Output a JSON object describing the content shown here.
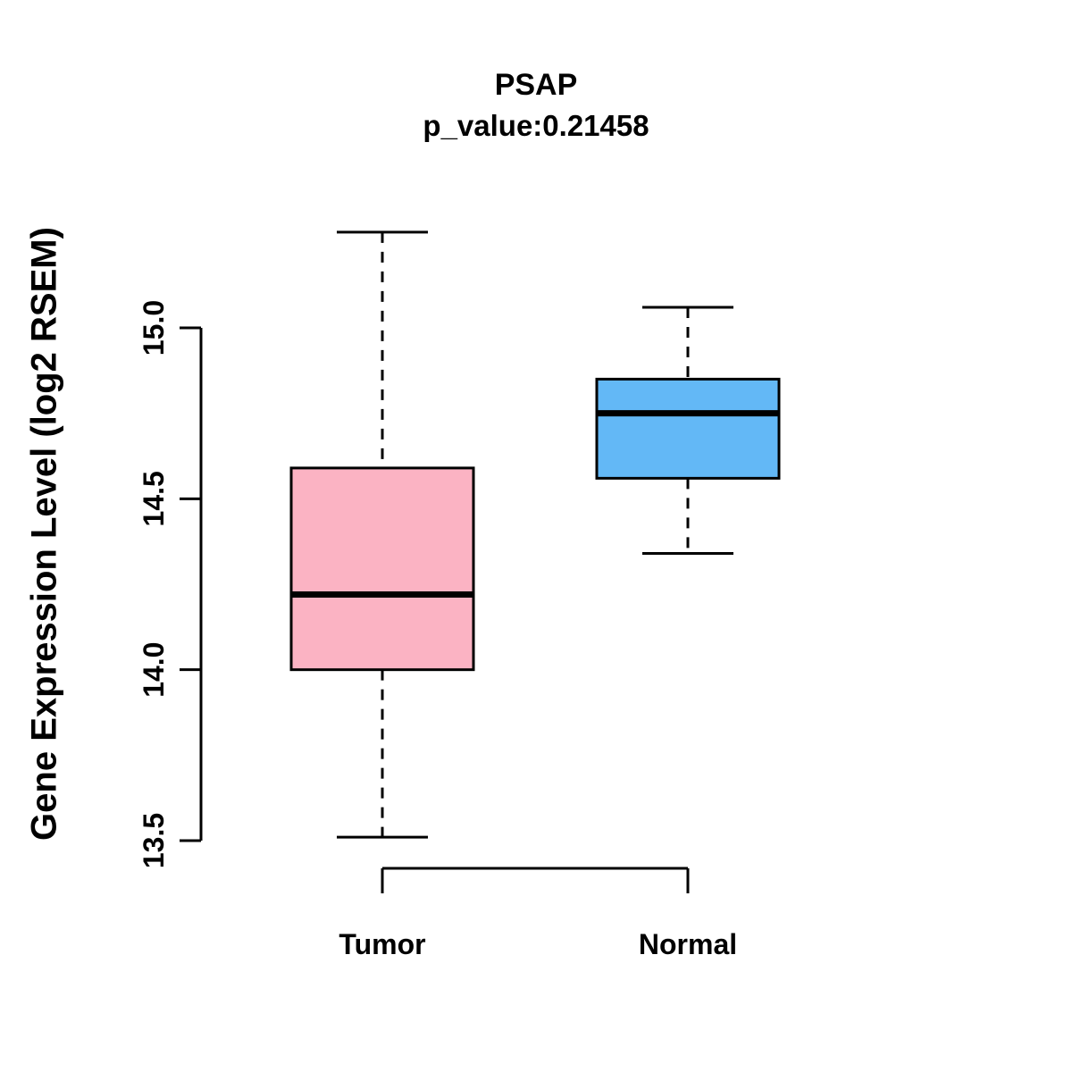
{
  "title": "PSAP",
  "subtitle": "p_value:0.21458",
  "ylabel": "Gene Expression Level (log2 RSEM)",
  "chart_data": {
    "type": "boxplot",
    "title": "PSAP",
    "subtitle": "p_value:0.21458",
    "ylabel": "Gene Expression Level (log2 RSEM)",
    "categories": [
      "Tumor",
      "Normal"
    ],
    "series": [
      {
        "name": "Tumor",
        "color": "#FBB3C3",
        "whisker_low": 13.51,
        "q1": 14.0,
        "median": 14.22,
        "q3": 14.59,
        "whisker_high": 15.28
      },
      {
        "name": "Normal",
        "color": "#63B8F6",
        "whisker_low": 14.34,
        "q1": 14.56,
        "median": 14.75,
        "q3": 14.85,
        "whisker_high": 15.06
      }
    ],
    "yticks": [
      13.5,
      14.0,
      14.5,
      15.0
    ],
    "ylim": [
      13.4,
      15.35
    ],
    "grid": false,
    "legend": "none"
  }
}
